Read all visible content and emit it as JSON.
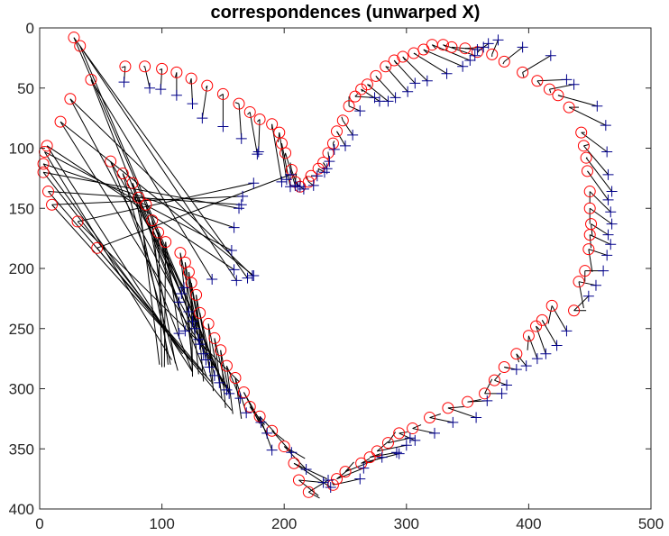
{
  "chart_data": {
    "type": "scatter",
    "title": "correspondences (unwarped X)",
    "xlabel": "",
    "ylabel": "",
    "xlim": [
      0,
      500
    ],
    "ylim": [
      400,
      0
    ],
    "y_reversed": true,
    "xticks": [
      "0",
      "100",
      "200",
      "300",
      "400",
      "500"
    ],
    "yticks": [
      "0",
      "50",
      "100",
      "150",
      "200",
      "250",
      "300",
      "350",
      "400"
    ],
    "grid": false,
    "legend": "none",
    "colors": {
      "circle": "#ff0000",
      "plus": "#00008b",
      "line": "#000000",
      "axis": "#262626"
    },
    "series": [
      {
        "marker": "circle",
        "x": [
          70,
          86,
          100,
          112,
          124,
          137,
          150,
          163,
          172,
          180,
          190,
          196,
          198,
          201,
          206,
          209,
          213,
          220,
          222,
          228,
          232,
          236,
          240,
          243,
          248,
          253,
          258,
          263,
          268,
          275,
          283,
          290,
          297,
          306,
          314,
          321,
          330,
          337,
          348,
          358,
          370,
          380,
          395,
          407,
          417,
          424,
          433,
          443,
          445,
          447,
          448,
          450,
          450,
          451,
          450,
          449,
          446,
          441,
          437,
          419,
          411,
          406,
          400,
          390,
          380,
          372,
          364,
          350,
          334,
          319,
          305,
          294,
          285,
          276,
          270,
          263,
          250,
          243,
          240,
          220,
          212,
          208,
          200,
          190,
          180,
          172,
          167,
          160,
          153,
          148,
          143,
          138,
          131,
          128,
          124,
          122,
          119,
          115,
          103,
          97,
          92,
          87,
          81,
          76,
          68,
          58,
          42,
          33,
          28,
          25,
          17,
          6,
          4,
          3,
          3,
          7,
          10,
          31,
          47
        ],
        "y": [
          32,
          32,
          34,
          37,
          42,
          48,
          55,
          63,
          70,
          76,
          80,
          87,
          96,
          104,
          118,
          128,
          132,
          128,
          123,
          117,
          112,
          104,
          96,
          86,
          77,
          65,
          57,
          51,
          47,
          40,
          32,
          27,
          24,
          21,
          18,
          14,
          14,
          16,
          17,
          20,
          22,
          28,
          37,
          44,
          51,
          56,
          66,
          87,
          98,
          108,
          119,
          136,
          150,
          163,
          172,
          184,
          202,
          211,
          235,
          231,
          243,
          248,
          256,
          271,
          282,
          293,
          304,
          311,
          316,
          324,
          333,
          337,
          345,
          352,
          357,
          362,
          369,
          375,
          380,
          386,
          376,
          362,
          348,
          335,
          323,
          315,
          303,
          291,
          281,
          268,
          258,
          246,
          237,
          222,
          212,
          203,
          195,
          187,
          178,
          170,
          160,
          147,
          141,
          129,
          121,
          111,
          43,
          15,
          8,
          59,
          78,
          98,
          103,
          113,
          120,
          136,
          147,
          161,
          183
        ],
        "x2": [
          67,
          85,
          98,
          111,
          123,
          136,
          147,
          160,
          170,
          178,
          190,
          195,
          198,
          200,
          205,
          210,
          213,
          218,
          223,
          228,
          233,
          236,
          241,
          245,
          247,
          253,
          260,
          264,
          271,
          277,
          286,
          292,
          299,
          308,
          317,
          324,
          333,
          339,
          349,
          359,
          370,
          379,
          396,
          410,
          418,
          427,
          441,
          446,
          449,
          448,
          451,
          450,
          450,
          452,
          451,
          452,
          446,
          445,
          447,
          416,
          414,
          409,
          399,
          392,
          383,
          377,
          370,
          361,
          347,
          328,
          312,
          301,
          291,
          285,
          279,
          270,
          257,
          253,
          239,
          229,
          228,
          235,
          217,
          200,
          192,
          184,
          180,
          165,
          158,
          152,
          149,
          142,
          141,
          134,
          125,
          130,
          125,
          125,
          102,
          100,
          105,
          111,
          98,
          107,
          113,
          125,
          137,
          149,
          151,
          155,
          156,
          125,
          108,
          117,
          123,
          133,
          140,
          163,
          157
        ],
        "y2": [
          33,
          32,
          35,
          41,
          46,
          50,
          57,
          62,
          72,
          78,
          84,
          95,
          101,
          109,
          112,
          121,
          125,
          123,
          123,
          120,
          114,
          103,
          94,
          89,
          74,
          57,
          55,
          53,
          48,
          43,
          33,
          30,
          27,
          22,
          21,
          17,
          16,
          17,
          17,
          20,
          24,
          30,
          41,
          48,
          54,
          57,
          66,
          87,
          97,
          108,
          123,
          146,
          163,
          173,
          183,
          203,
          211,
          233,
          235,
          246,
          248,
          251,
          268,
          278,
          283,
          287,
          292,
          309,
          315,
          321,
          330,
          336,
          336,
          344,
          354,
          358,
          361,
          367,
          376,
          391,
          389,
          375,
          358,
          343,
          336,
          330,
          329,
          325,
          321,
          316,
          308,
          302,
          296,
          294,
          290,
          288,
          286,
          278,
          282,
          282,
          280,
          279,
          280,
          280,
          285,
          286,
          291,
          293,
          299,
          304,
          303,
          286,
          276,
          271,
          276,
          285,
          294,
          294,
          318
        ]
      },
      {
        "marker": "plus",
        "x": [
          69,
          90,
          99,
          112,
          125,
          133,
          150,
          165,
          178,
          179,
          198,
          202,
          205,
          209,
          211,
          213,
          216,
          224,
          227,
          233,
          235,
          237,
          241,
          250,
          256,
          262,
          274,
          278,
          285,
          291,
          301,
          307,
          317,
          333,
          346,
          352,
          356,
          358,
          363,
          367,
          375,
          395,
          418,
          431,
          437,
          456,
          463,
          464,
          465,
          468,
          465,
          467,
          468,
          465,
          467,
          464,
          461,
          455,
          449,
          431,
          423,
          414,
          407,
          398,
          390,
          382,
          378,
          366,
          357,
          338,
          323,
          307,
          303,
          300,
          292,
          294,
          280,
          265,
          262,
          236,
          232,
          238,
          218,
          206,
          190,
          186,
          181,
          169,
          164,
          155,
          153,
          147,
          143,
          139,
          136,
          134,
          131,
          130,
          114,
          119,
          127,
          125,
          122,
          114,
          116,
          118,
          141,
          161,
          170,
          174,
          175,
          159,
          157,
          159,
          163,
          165,
          166,
          175,
          205
        ],
        "y": [
          45,
          50,
          51,
          56,
          63,
          75,
          82,
          92,
          105,
          103,
          128,
          126,
          132,
          131,
          132,
          132,
          134,
          131,
          123,
          120,
          117,
          111,
          101,
          98,
          89,
          69,
          58,
          61,
          61,
          58,
          53,
          46,
          44,
          38,
          32,
          27,
          23,
          18,
          16,
          13,
          10,
          16,
          23,
          43,
          47,
          65,
          81,
          103,
          122,
          136,
          143,
          153,
          163,
          172,
          180,
          189,
          202,
          214,
          223,
          252,
          264,
          271,
          275,
          281,
          284,
          297,
          304,
          310,
          324,
          328,
          337,
          343,
          341,
          347,
          353,
          354,
          357,
          366,
          375,
          376,
          378,
          382,
          367,
          353,
          351,
          337,
          328,
          320,
          308,
          304,
          301,
          295,
          289,
          282,
          276,
          271,
          263,
          259,
          254,
          252,
          250,
          244,
          236,
          228,
          221,
          216,
          209,
          210,
          208,
          206,
          206,
          201,
          185,
          166,
          150,
          147,
          140,
          129,
          122
        ],
        "x2": [
          70,
          86,
          100,
          112,
          124,
          137,
          150,
          163,
          172,
          180,
          190,
          196,
          198,
          201,
          206,
          209,
          213,
          220,
          222,
          228,
          232,
          236,
          240,
          243,
          248,
          253,
          258,
          263,
          268,
          275,
          283,
          290,
          297,
          306,
          314,
          321,
          330,
          337,
          348,
          358,
          370,
          380,
          395,
          407,
          417,
          424,
          433,
          443,
          445,
          447,
          448,
          450,
          450,
          451,
          450,
          449,
          446,
          441,
          437,
          419,
          411,
          406,
          400,
          390,
          380,
          372,
          364,
          350,
          334,
          319,
          305,
          294,
          285,
          276,
          270,
          263,
          250,
          243,
          240,
          220,
          212,
          208,
          200,
          190,
          180,
          172,
          167,
          160,
          153,
          148,
          143,
          138,
          131,
          128,
          124,
          122,
          119,
          115,
          103,
          97,
          92,
          87,
          81,
          76,
          68,
          58,
          42,
          33,
          28,
          25,
          17,
          6,
          4,
          3,
          3,
          7,
          10,
          31,
          47
        ],
        "y2": [
          32,
          32,
          34,
          37,
          42,
          48,
          55,
          63,
          70,
          76,
          80,
          87,
          96,
          104,
          118,
          128,
          132,
          128,
          123,
          117,
          112,
          104,
          96,
          86,
          77,
          65,
          57,
          51,
          47,
          40,
          32,
          27,
          24,
          21,
          18,
          14,
          14,
          16,
          17,
          20,
          22,
          28,
          37,
          44,
          51,
          56,
          66,
          87,
          98,
          108,
          119,
          136,
          150,
          163,
          172,
          184,
          202,
          211,
          235,
          231,
          243,
          248,
          256,
          271,
          282,
          293,
          304,
          311,
          316,
          324,
          333,
          337,
          345,
          352,
          357,
          362,
          369,
          375,
          380,
          386,
          376,
          362,
          348,
          335,
          323,
          315,
          303,
          291,
          281,
          268,
          258,
          246,
          237,
          222,
          212,
          203,
          195,
          187,
          178,
          170,
          160,
          147,
          141,
          129,
          121,
          111,
          43,
          15,
          8,
          59,
          78,
          98,
          103,
          113,
          120,
          136,
          147,
          161,
          183
        ]
      }
    ]
  }
}
